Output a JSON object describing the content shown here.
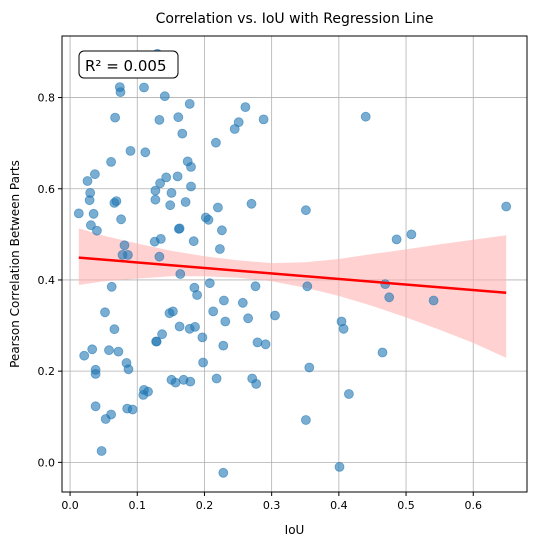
{
  "chart_data": {
    "type": "scatter",
    "title": "Correlation vs. IoU with Regression Line",
    "xlabel": "IoU",
    "ylabel": "Pearson Correlation Between Parts",
    "xlim": [
      -0.012,
      0.68
    ],
    "ylim": [
      -0.065,
      0.935
    ],
    "xticks": [
      "0.0",
      "0.1",
      "0.2",
      "0.3",
      "0.4",
      "0.5",
      "0.6"
    ],
    "yticks": [
      "0.0",
      "0.2",
      "0.4",
      "0.6",
      "0.8"
    ],
    "grid": true,
    "annotation": {
      "text": "R² = 0.005",
      "position": "top-left"
    },
    "colors": {
      "points": "#1f77b4",
      "line": "#ff0000",
      "band": "#ffb3b3"
    },
    "points": [
      [
        0.013,
        0.546
      ],
      [
        0.021,
        0.234
      ],
      [
        0.026,
        0.617
      ],
      [
        0.029,
        0.575
      ],
      [
        0.03,
        0.591
      ],
      [
        0.031,
        0.52
      ],
      [
        0.033,
        0.248
      ],
      [
        0.035,
        0.545
      ],
      [
        0.037,
        0.632
      ],
      [
        0.038,
        0.203
      ],
      [
        0.038,
        0.194
      ],
      [
        0.038,
        0.123
      ],
      [
        0.04,
        0.508
      ],
      [
        0.047,
        0.025
      ],
      [
        0.052,
        0.329
      ],
      [
        0.053,
        0.095
      ],
      [
        0.058,
        0.246
      ],
      [
        0.061,
        0.659
      ],
      [
        0.061,
        0.105
      ],
      [
        0.062,
        0.385
      ],
      [
        0.066,
        0.569
      ],
      [
        0.066,
        0.292
      ],
      [
        0.067,
        0.756
      ],
      [
        0.069,
        0.573
      ],
      [
        0.072,
        0.243
      ],
      [
        0.074,
        0.823
      ],
      [
        0.075,
        0.812
      ],
      [
        0.076,
        0.533
      ],
      [
        0.078,
        0.455
      ],
      [
        0.081,
        0.476
      ],
      [
        0.084,
        0.218
      ],
      [
        0.085,
        0.118
      ],
      [
        0.086,
        0.455
      ],
      [
        0.087,
        0.204
      ],
      [
        0.09,
        0.683
      ],
      [
        0.093,
        0.116
      ],
      [
        0.109,
        0.148
      ],
      [
        0.11,
        0.822
      ],
      [
        0.11,
        0.159
      ],
      [
        0.112,
        0.68
      ],
      [
        0.116,
        0.155
      ],
      [
        0.126,
        0.484
      ],
      [
        0.127,
        0.596
      ],
      [
        0.127,
        0.576
      ],
      [
        0.128,
        0.265
      ],
      [
        0.129,
        0.265
      ],
      [
        0.13,
        0.896
      ],
      [
        0.133,
        0.751
      ],
      [
        0.133,
        0.451
      ],
      [
        0.134,
        0.612
      ],
      [
        0.135,
        0.49
      ],
      [
        0.137,
        0.281
      ],
      [
        0.141,
        0.803
      ],
      [
        0.143,
        0.625
      ],
      [
        0.148,
        0.327
      ],
      [
        0.149,
        0.564
      ],
      [
        0.151,
        0.181
      ],
      [
        0.151,
        0.591
      ],
      [
        0.153,
        0.331
      ],
      [
        0.157,
        0.175
      ],
      [
        0.16,
        0.627
      ],
      [
        0.161,
        0.757
      ],
      [
        0.162,
        0.512
      ],
      [
        0.163,
        0.298
      ],
      [
        0.163,
        0.513
      ],
      [
        0.164,
        0.413
      ],
      [
        0.167,
        0.721
      ],
      [
        0.169,
        0.181
      ],
      [
        0.172,
        0.571
      ],
      [
        0.175,
        0.66
      ],
      [
        0.178,
        0.293
      ],
      [
        0.178,
        0.786
      ],
      [
        0.179,
        0.177
      ],
      [
        0.18,
        0.648
      ],
      [
        0.18,
        0.605
      ],
      [
        0.184,
        0.485
      ],
      [
        0.185,
        0.383
      ],
      [
        0.186,
        0.297
      ],
      [
        0.189,
        0.367
      ],
      [
        0.197,
        0.274
      ],
      [
        0.198,
        0.219
      ],
      [
        0.202,
        0.537
      ],
      [
        0.206,
        0.532
      ],
      [
        0.208,
        0.393
      ],
      [
        0.213,
        0.331
      ],
      [
        0.217,
        0.701
      ],
      [
        0.218,
        0.184
      ],
      [
        0.22,
        0.559
      ],
      [
        0.223,
        0.468
      ],
      [
        0.226,
        0.509
      ],
      [
        0.228,
        0.256
      ],
      [
        0.228,
        -0.023
      ],
      [
        0.229,
        0.355
      ],
      [
        0.231,
        0.309
      ],
      [
        0.245,
        0.731
      ],
      [
        0.251,
        0.746
      ],
      [
        0.257,
        0.35
      ],
      [
        0.261,
        0.779
      ],
      [
        0.265,
        0.316
      ],
      [
        0.27,
        0.567
      ],
      [
        0.271,
        0.184
      ],
      [
        0.276,
        0.386
      ],
      [
        0.277,
        0.172
      ],
      [
        0.279,
        0.263
      ],
      [
        0.288,
        0.752
      ],
      [
        0.291,
        0.259
      ],
      [
        0.305,
        0.322
      ],
      [
        0.351,
        0.553
      ],
      [
        0.351,
        0.093
      ],
      [
        0.353,
        0.386
      ],
      [
        0.356,
        0.208
      ],
      [
        0.401,
        -0.01
      ],
      [
        0.404,
        0.309
      ],
      [
        0.407,
        0.293
      ],
      [
        0.415,
        0.15
      ],
      [
        0.44,
        0.758
      ],
      [
        0.465,
        0.241
      ],
      [
        0.469,
        0.391
      ],
      [
        0.475,
        0.362
      ],
      [
        0.486,
        0.489
      ],
      [
        0.508,
        0.5
      ],
      [
        0.541,
        0.355
      ],
      [
        0.649,
        0.561
      ]
    ],
    "regression": {
      "x": [
        0.013,
        0.649
      ],
      "y": [
        0.449,
        0.372
      ]
    },
    "confidence_band": {
      "x": [
        0.013,
        0.05,
        0.1,
        0.15,
        0.2,
        0.25,
        0.3,
        0.35,
        0.4,
        0.45,
        0.5,
        0.55,
        0.6,
        0.649
      ],
      "upper": [
        0.513,
        0.497,
        0.48,
        0.464,
        0.452,
        0.443,
        0.437,
        0.439,
        0.446,
        0.457,
        0.467,
        0.478,
        0.488,
        0.498
      ],
      "lower": [
        0.389,
        0.397,
        0.403,
        0.408,
        0.408,
        0.405,
        0.397,
        0.383,
        0.365,
        0.343,
        0.318,
        0.291,
        0.262,
        0.229
      ]
    }
  }
}
